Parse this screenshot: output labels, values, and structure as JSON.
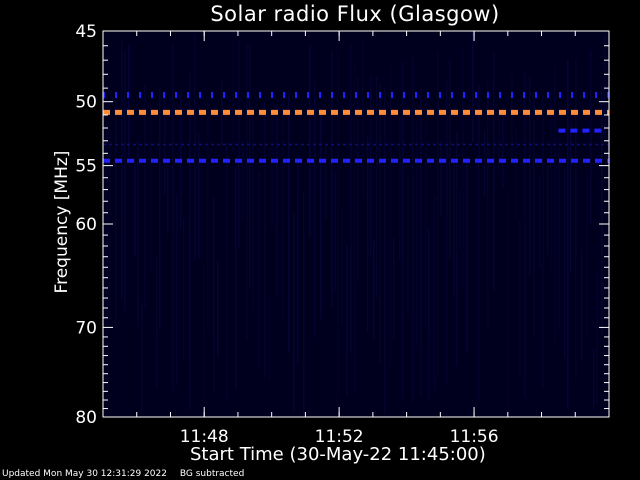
{
  "colors": {
    "background": "#000000",
    "axis": "#ffffff",
    "plot_background": "#00001e",
    "emission_strong": "#ff8c3a",
    "emission_medium": "#2222ff",
    "emission_weak": "#0c0c80"
  },
  "chart_data": {
    "type": "heatmap",
    "title": "Solar radio Flux (Glasgow)",
    "xlabel": "Start Time (30-May-22 11:45:00)",
    "ylabel": "Frequency [MHz]",
    "x_unit": "minutes",
    "xlim": [
      "11:45:00",
      "12:00:00"
    ],
    "x_ticks": [
      "11:48",
      "11:52",
      "11:56"
    ],
    "ylim": [
      45,
      80
    ],
    "y_scale": "log",
    "y_ticks": [
      45,
      50,
      55,
      60,
      70,
      80
    ],
    "bands": [
      {
        "frequency": 50.8,
        "intensity": "strong",
        "start": "11:45:00",
        "end": "12:00:00",
        "pattern": "dashed"
      },
      {
        "frequency": 54.6,
        "intensity": "medium",
        "start": "11:45:00",
        "end": "12:00:00",
        "pattern": "dashed"
      },
      {
        "frequency": 49.5,
        "intensity": "medium",
        "start": "11:45:00",
        "end": "12:00:00",
        "pattern": "dotted"
      },
      {
        "frequency": 52.2,
        "intensity": "medium",
        "start": "11:58:30",
        "end": "11:59:50",
        "pattern": "dashed"
      },
      {
        "frequency": 53.3,
        "intensity": "weak",
        "start": "11:45:00",
        "end": "12:00:00",
        "pattern": "faint"
      }
    ]
  },
  "footer": {
    "updated": "Updated Mon May 30 12:31:29 2022",
    "note": "BG subtracted"
  }
}
